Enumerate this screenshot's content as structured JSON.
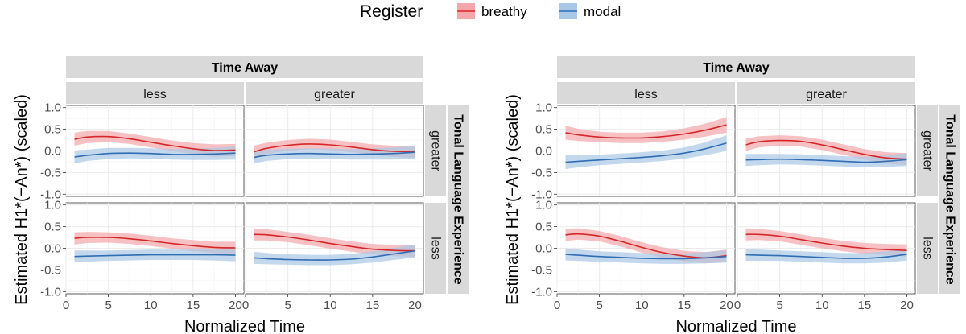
{
  "legend": {
    "title": "Register",
    "entries": [
      {
        "label": "breathy",
        "color": "#d62728",
        "fill": "#f4a6ab"
      },
      {
        "label": "modal",
        "color": "#2f6db5",
        "fill": "#a9c8e6"
      }
    ]
  },
  "colors": {
    "strip_fill": "#d9d9d9",
    "panel_bg": "#ffffff",
    "grid_major": "#ebebeb",
    "breathy_line": "#d62728",
    "modal_line": "#2f6db5"
  },
  "chart_data": [
    {
      "type": "line",
      "description_of_layout": "facet grid: rows = Tonal Language Experience, columns = Time Away",
      "xlabel": "Normalized Time",
      "ylabel": "Estimated H1*(−An*) (scaled)",
      "col_strip_title": "Time Away",
      "row_strip_title": "Tonal Language Experience",
      "col_levels": [
        "less",
        "greater"
      ],
      "row_levels": [
        "greater",
        "less"
      ],
      "xlim": [
        0,
        21
      ],
      "ylim": [
        -1.05,
        1.05
      ],
      "x_ticks": [
        0,
        5,
        10,
        15,
        20
      ],
      "y_ticks": [
        -1.0,
        -0.5,
        0.0,
        0.5,
        1.0
      ],
      "y_tick_labels": [
        "-1.0",
        "-0.5",
        "0.0",
        "0.5",
        "1.0"
      ],
      "x_tick_labels": [
        "0",
        "5",
        "10",
        "15",
        "20"
      ],
      "x": [
        1,
        2.5,
        5,
        7.5,
        10,
        12.5,
        15,
        17.5,
        20
      ],
      "panels": [
        {
          "row": "greater",
          "col": "less",
          "series": [
            {
              "name": "breathy",
              "y": [
                0.27,
                0.32,
                0.33,
                0.28,
                0.2,
                0.12,
                0.05,
                0.01,
                0.02
              ],
              "lower": [
                0.12,
                0.18,
                0.2,
                0.16,
                0.08,
                0.0,
                -0.08,
                -0.13,
                -0.12
              ],
              "upper": [
                0.42,
                0.46,
                0.46,
                0.4,
                0.32,
                0.24,
                0.18,
                0.15,
                0.16
              ]
            },
            {
              "name": "modal",
              "y": [
                -0.14,
                -0.1,
                -0.06,
                -0.05,
                -0.06,
                -0.08,
                -0.08,
                -0.07,
                -0.05
              ],
              "lower": [
                -0.29,
                -0.23,
                -0.19,
                -0.17,
                -0.18,
                -0.2,
                -0.21,
                -0.21,
                -0.2
              ],
              "upper": [
                0.01,
                0.03,
                0.07,
                0.07,
                0.06,
                0.04,
                0.05,
                0.07,
                0.1
              ]
            }
          ]
        },
        {
          "row": "greater",
          "col": "greater",
          "series": [
            {
              "name": "breathy",
              "y": [
                -0.02,
                0.06,
                0.13,
                0.16,
                0.14,
                0.09,
                0.03,
                -0.01,
                -0.02
              ],
              "lower": [
                -0.16,
                -0.07,
                0.01,
                0.04,
                0.02,
                -0.03,
                -0.09,
                -0.14,
                -0.16
              ],
              "upper": [
                0.12,
                0.19,
                0.25,
                0.28,
                0.26,
                0.21,
                0.15,
                0.12,
                0.12
              ]
            },
            {
              "name": "modal",
              "y": [
                -0.15,
                -0.1,
                -0.07,
                -0.06,
                -0.07,
                -0.08,
                -0.07,
                -0.06,
                -0.03
              ],
              "lower": [
                -0.29,
                -0.23,
                -0.19,
                -0.18,
                -0.19,
                -0.2,
                -0.2,
                -0.2,
                -0.18
              ],
              "upper": [
                -0.01,
                0.03,
                0.05,
                0.06,
                0.05,
                0.04,
                0.06,
                0.08,
                0.12
              ]
            }
          ]
        },
        {
          "row": "less",
          "col": "less",
          "series": [
            {
              "name": "breathy",
              "y": [
                0.23,
                0.25,
                0.25,
                0.22,
                0.17,
                0.11,
                0.06,
                0.02,
                0.01
              ],
              "lower": [
                0.09,
                0.12,
                0.13,
                0.1,
                0.05,
                -0.01,
                -0.07,
                -0.11,
                -0.13
              ],
              "upper": [
                0.37,
                0.38,
                0.37,
                0.34,
                0.29,
                0.23,
                0.19,
                0.15,
                0.15
              ]
            },
            {
              "name": "modal",
              "y": [
                -0.19,
                -0.18,
                -0.17,
                -0.16,
                -0.15,
                -0.15,
                -0.15,
                -0.15,
                -0.16
              ],
              "lower": [
                -0.33,
                -0.31,
                -0.29,
                -0.28,
                -0.27,
                -0.27,
                -0.27,
                -0.28,
                -0.3
              ],
              "upper": [
                -0.05,
                -0.05,
                -0.05,
                -0.04,
                -0.03,
                -0.03,
                -0.03,
                -0.02,
                -0.02
              ]
            }
          ]
        },
        {
          "row": "less",
          "col": "greater",
          "series": [
            {
              "name": "breathy",
              "y": [
                0.32,
                0.31,
                0.26,
                0.19,
                0.11,
                0.04,
                -0.02,
                -0.05,
                -0.06
              ],
              "lower": [
                0.18,
                0.18,
                0.14,
                0.07,
                -0.01,
                -0.08,
                -0.14,
                -0.18,
                -0.2
              ],
              "upper": [
                0.46,
                0.44,
                0.38,
                0.31,
                0.23,
                0.16,
                0.1,
                0.08,
                0.08
              ]
            },
            {
              "name": "modal",
              "y": [
                -0.22,
                -0.24,
                -0.26,
                -0.27,
                -0.27,
                -0.25,
                -0.2,
                -0.13,
                -0.06
              ],
              "lower": [
                -0.36,
                -0.37,
                -0.38,
                -0.39,
                -0.39,
                -0.37,
                -0.33,
                -0.27,
                -0.21
              ],
              "upper": [
                -0.08,
                -0.11,
                -0.14,
                -0.15,
                -0.15,
                -0.13,
                -0.07,
                0.01,
                0.09
              ]
            }
          ]
        }
      ]
    },
    {
      "type": "line",
      "description_of_layout": "facet grid: rows = Tonal Language Experience, columns = Time Away",
      "xlabel": "Normalized Time",
      "ylabel": "Estimated H1*(−An*) (scaled)",
      "col_strip_title": "Time Away",
      "row_strip_title": "Tonal Language Experience",
      "col_levels": [
        "less",
        "greater"
      ],
      "row_levels": [
        "greater",
        "less"
      ],
      "xlim": [
        0,
        21
      ],
      "ylim": [
        -1.05,
        1.05
      ],
      "x_ticks": [
        0,
        5,
        10,
        15,
        20
      ],
      "y_ticks": [
        -1.0,
        -0.5,
        0.0,
        0.5,
        1.0
      ],
      "y_tick_labels": [
        "-1.0",
        "-0.5",
        "0.0",
        "0.5",
        "1.0"
      ],
      "x_tick_labels": [
        "0",
        "5",
        "10",
        "15",
        "20"
      ],
      "x": [
        1,
        2.5,
        5,
        7.5,
        10,
        12.5,
        15,
        17.5,
        20
      ],
      "panels": [
        {
          "row": "greater",
          "col": "less",
          "series": [
            {
              "name": "breathy",
              "y": [
                0.42,
                0.37,
                0.32,
                0.3,
                0.3,
                0.33,
                0.39,
                0.48,
                0.6
              ],
              "lower": [
                0.26,
                0.23,
                0.2,
                0.18,
                0.18,
                0.21,
                0.26,
                0.33,
                0.42
              ],
              "upper": [
                0.58,
                0.51,
                0.44,
                0.42,
                0.42,
                0.45,
                0.52,
                0.63,
                0.78
              ]
            },
            {
              "name": "modal",
              "y": [
                -0.26,
                -0.24,
                -0.21,
                -0.18,
                -0.15,
                -0.11,
                -0.05,
                0.05,
                0.18
              ],
              "lower": [
                -0.42,
                -0.38,
                -0.33,
                -0.3,
                -0.27,
                -0.23,
                -0.18,
                -0.1,
                0.0
              ],
              "upper": [
                -0.1,
                -0.1,
                -0.09,
                -0.06,
                -0.03,
                0.01,
                0.08,
                0.2,
                0.36
              ]
            }
          ]
        },
        {
          "row": "greater",
          "col": "greater",
          "series": [
            {
              "name": "breathy",
              "y": [
                0.14,
                0.21,
                0.24,
                0.22,
                0.14,
                0.03,
                -0.08,
                -0.16,
                -0.19
              ],
              "lower": [
                0.0,
                0.08,
                0.12,
                0.1,
                0.02,
                -0.09,
                -0.2,
                -0.29,
                -0.33
              ],
              "upper": [
                0.28,
                0.34,
                0.36,
                0.34,
                0.26,
                0.15,
                0.04,
                -0.03,
                -0.05
              ]
            },
            {
              "name": "modal",
              "y": [
                -0.21,
                -0.2,
                -0.19,
                -0.2,
                -0.22,
                -0.24,
                -0.26,
                -0.24,
                -0.2
              ],
              "lower": [
                -0.35,
                -0.33,
                -0.31,
                -0.32,
                -0.34,
                -0.36,
                -0.38,
                -0.37,
                -0.35
              ],
              "upper": [
                -0.07,
                -0.07,
                -0.07,
                -0.08,
                -0.1,
                -0.12,
                -0.14,
                -0.11,
                -0.05
              ]
            }
          ]
        },
        {
          "row": "less",
          "col": "less",
          "series": [
            {
              "name": "breathy",
              "y": [
                0.31,
                0.33,
                0.28,
                0.16,
                0.02,
                -0.1,
                -0.18,
                -0.22,
                -0.17
              ],
              "lower": [
                0.17,
                0.2,
                0.16,
                0.04,
                -0.1,
                -0.22,
                -0.3,
                -0.35,
                -0.31
              ],
              "upper": [
                0.45,
                0.46,
                0.4,
                0.28,
                0.14,
                0.02,
                -0.06,
                -0.09,
                -0.03
              ]
            },
            {
              "name": "modal",
              "y": [
                -0.14,
                -0.16,
                -0.19,
                -0.21,
                -0.23,
                -0.24,
                -0.24,
                -0.22,
                -0.19
              ],
              "lower": [
                -0.28,
                -0.29,
                -0.31,
                -0.33,
                -0.35,
                -0.36,
                -0.36,
                -0.35,
                -0.33
              ],
              "upper": [
                0.0,
                -0.03,
                -0.07,
                -0.09,
                -0.11,
                -0.12,
                -0.12,
                -0.09,
                -0.05
              ]
            }
          ]
        },
        {
          "row": "less",
          "col": "greater",
          "series": [
            {
              "name": "breathy",
              "y": [
                0.32,
                0.32,
                0.28,
                0.2,
                0.12,
                0.05,
                0.0,
                -0.03,
                -0.05
              ],
              "lower": [
                0.18,
                0.19,
                0.16,
                0.08,
                0.0,
                -0.07,
                -0.12,
                -0.16,
                -0.19
              ],
              "upper": [
                0.46,
                0.45,
                0.4,
                0.32,
                0.24,
                0.17,
                0.12,
                0.1,
                0.09
              ]
            },
            {
              "name": "modal",
              "y": [
                -0.15,
                -0.16,
                -0.17,
                -0.19,
                -0.21,
                -0.23,
                -0.23,
                -0.2,
                -0.14
              ],
              "lower": [
                -0.29,
                -0.29,
                -0.29,
                -0.31,
                -0.33,
                -0.35,
                -0.35,
                -0.33,
                -0.28
              ],
              "upper": [
                -0.01,
                -0.03,
                -0.05,
                -0.07,
                -0.09,
                -0.11,
                -0.11,
                -0.07,
                0.0
              ]
            }
          ]
        }
      ]
    }
  ]
}
